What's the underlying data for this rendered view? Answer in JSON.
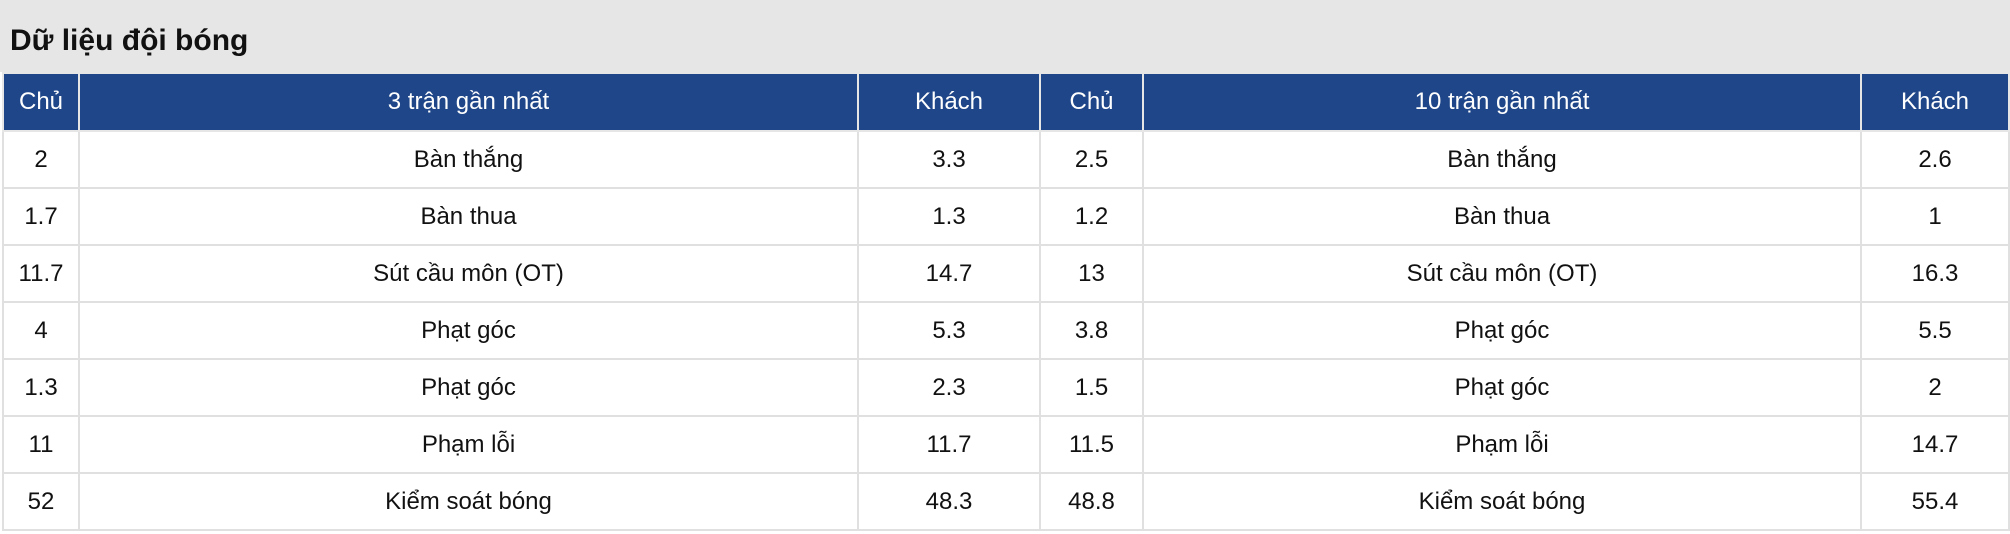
{
  "title": "Dữ liệu đội bóng",
  "colors": {
    "header_bg": "#1f4688",
    "title_bg": "#e6e6e6"
  },
  "headers": [
    "Chủ",
    "3 trận gần nhất",
    "Khách",
    "Chủ",
    "10 trận gần nhất",
    "Khách"
  ],
  "rows": [
    [
      "2",
      "Bàn thắng",
      "3.3",
      "2.5",
      "Bàn thắng",
      "2.6"
    ],
    [
      "1.7",
      "Bàn thua",
      "1.3",
      "1.2",
      "Bàn thua",
      "1"
    ],
    [
      "11.7",
      "Sút cầu môn (OT)",
      "14.7",
      "13",
      "Sút cầu môn (OT)",
      "16.3"
    ],
    [
      "4",
      "Phạt góc",
      "5.3",
      "3.8",
      "Phạt góc",
      "5.5"
    ],
    [
      "1.3",
      "Phạt góc",
      "2.3",
      "1.5",
      "Phạt góc",
      "2"
    ],
    [
      "11",
      "Phạm lỗi",
      "11.7",
      "11.5",
      "Phạm lỗi",
      "14.7"
    ],
    [
      "52",
      "Kiểm soát bóng",
      "48.3",
      "48.8",
      "Kiểm soát bóng",
      "55.4"
    ]
  ]
}
